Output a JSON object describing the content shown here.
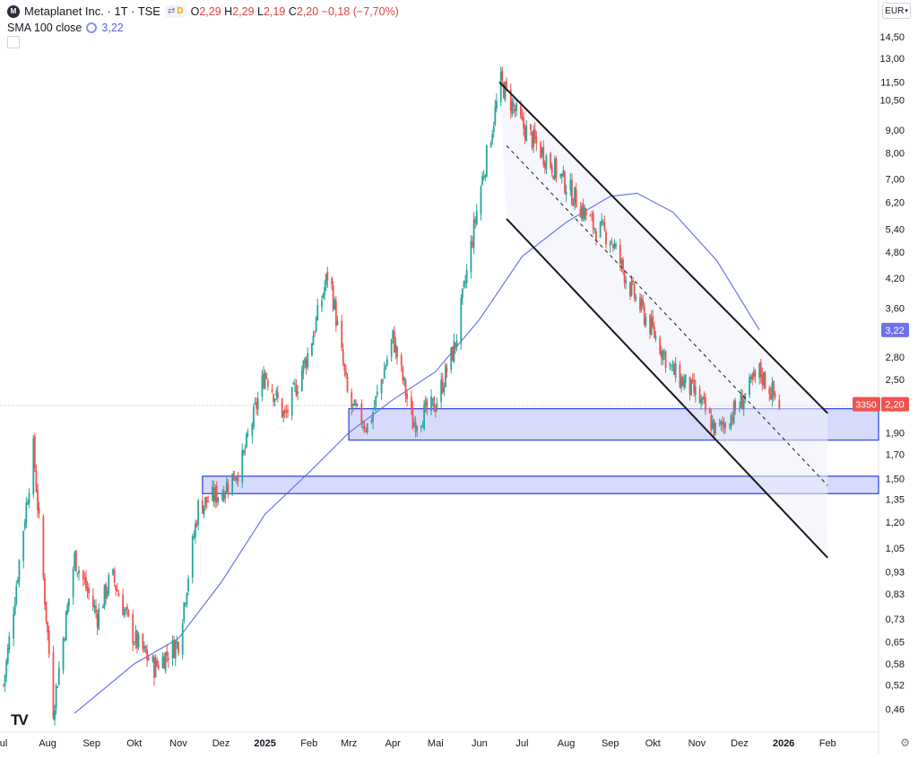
{
  "header": {
    "logo_letter": "M",
    "title": "Metaplanet Inc. · 1T · TSE",
    "pill_icon": "compare-icon",
    "pill_label": "D",
    "ohlc": {
      "o_key": "O",
      "o_val": "2,29",
      "h_key": "H",
      "h_val": "2,29",
      "l_key": "L",
      "l_val": "2,19",
      "c_key": "C",
      "c_val": "2,20",
      "change": "−0,18 (−7,70%)"
    },
    "sma_label": "SMA 100 close",
    "sma_value": "3,22",
    "currency": "EUR",
    "currency_icon": "chevron-down-icon",
    "collapse_icon": "chevron-up-icon",
    "settings_icon": "gear-icon",
    "brand": "TV"
  },
  "colors": {
    "up": "#26a69a",
    "down": "#ef5350",
    "sma": "#5b6cf2",
    "zone_fill": "#c9cdfb",
    "zone_stroke": "#3448e8",
    "channel": "#1a1a1a",
    "price_tag": "#ef5350",
    "sma_tag": "#6f72ec"
  },
  "chart_data": {
    "type": "candlestick",
    "scale": "log",
    "ylim": [
      0.44,
      15.2
    ],
    "y_ticks": [
      "14,50",
      "13,00",
      "11,50",
      "10,50",
      "9,00",
      "8,00",
      "7,00",
      "6,20",
      "5,40",
      "4,80",
      "4,20",
      "3,60",
      "2,80",
      "2,50",
      "2,20",
      "1,90",
      "1,70",
      "1,50",
      "1,35",
      "1,20",
      "1,05",
      "0,93",
      "0,83",
      "0,73",
      "0,65",
      "0,58",
      "0,52",
      "0,46"
    ],
    "y_tick_values": [
      14.5,
      13.0,
      11.5,
      10.5,
      9.0,
      8.0,
      7.0,
      6.2,
      5.4,
      4.8,
      4.2,
      3.6,
      2.8,
      2.5,
      2.2,
      1.9,
      1.7,
      1.5,
      1.35,
      1.2,
      1.05,
      0.93,
      0.83,
      0.73,
      0.65,
      0.58,
      0.52,
      0.46
    ],
    "x_ticks": [
      "ul",
      "Aug",
      "Sep",
      "Okt",
      "Nov",
      "Dez",
      "2025",
      "Feb",
      "Mrz",
      "Apr",
      "Mai",
      "Jun",
      "Jul",
      "Aug",
      "Sep",
      "Okt",
      "Nov",
      "Dez",
      "2026",
      "Feb"
    ],
    "x_tick_bold": [
      "2025",
      "2026"
    ],
    "x_range": [
      "2024-07",
      "2026-02"
    ],
    "price_path": [
      [
        "2024-07-01",
        0.52
      ],
      [
        "2024-07-22",
        1.75
      ],
      [
        "2024-08-05",
        0.46
      ],
      [
        "2024-08-20",
        1.0
      ],
      [
        "2024-09-05",
        0.74
      ],
      [
        "2024-09-15",
        0.92
      ],
      [
        "2024-10-01",
        0.66
      ],
      [
        "2024-10-15",
        0.57
      ],
      [
        "2024-11-01",
        0.65
      ],
      [
        "2024-11-15",
        1.3
      ],
      [
        "2024-12-01",
        1.4
      ],
      [
        "2024-12-15",
        1.6
      ],
      [
        "2025-01-01",
        2.6
      ],
      [
        "2025-01-15",
        2.05
      ],
      [
        "2025-02-01",
        2.9
      ],
      [
        "2025-02-15",
        4.4
      ],
      [
        "2025-03-01",
        2.2
      ],
      [
        "2025-03-15",
        1.95
      ],
      [
        "2025-04-01",
        3.1
      ],
      [
        "2025-04-15",
        2.0
      ],
      [
        "2025-05-01",
        2.2
      ],
      [
        "2025-05-15",
        3.0
      ],
      [
        "2025-06-01",
        6.5
      ],
      [
        "2025-06-16",
        11.5
      ],
      [
        "2025-07-01",
        9.2
      ],
      [
        "2025-08-01",
        6.8
      ],
      [
        "2025-08-20",
        5.5
      ],
      [
        "2025-09-01",
        5.2
      ],
      [
        "2025-09-15",
        4.0
      ],
      [
        "2025-10-01",
        3.2
      ],
      [
        "2025-10-15",
        2.6
      ],
      [
        "2025-11-01",
        2.3
      ],
      [
        "2025-11-15",
        1.9
      ],
      [
        "2025-12-01",
        2.2
      ],
      [
        "2025-12-15",
        2.6
      ],
      [
        "2025-12-29",
        2.2
      ]
    ],
    "sma_path": [
      [
        "2024-08-20",
        0.45
      ],
      [
        "2024-10-01",
        0.58
      ],
      [
        "2024-11-01",
        0.66
      ],
      [
        "2024-12-01",
        0.88
      ],
      [
        "2025-01-01",
        1.25
      ],
      [
        "2025-02-01",
        1.55
      ],
      [
        "2025-03-01",
        1.9
      ],
      [
        "2025-04-01",
        2.25
      ],
      [
        "2025-05-01",
        2.6
      ],
      [
        "2025-06-01",
        3.4
      ],
      [
        "2025-07-01",
        4.7
      ],
      [
        "2025-08-01",
        5.6
      ],
      [
        "2025-09-01",
        6.4
      ],
      [
        "2025-09-20",
        6.5
      ],
      [
        "2025-10-15",
        5.9
      ],
      [
        "2025-11-15",
        4.6
      ],
      [
        "2025-12-15",
        3.22
      ]
    ],
    "last_price": "2,20",
    "last_price_label": "3350",
    "sma_last": "3,22",
    "drawings": {
      "zones": [
        {
          "from": "2025-03-01",
          "to": "2026-02-28",
          "low": 1.83,
          "high": 2.15
        },
        {
          "from": "2024-11-18",
          "to": "2026-02-28",
          "low": 1.39,
          "high": 1.52
        }
      ],
      "channel_upper": [
        [
          "2025-06-15",
          11.5
        ],
        [
          "2026-02-01",
          2.1
        ]
      ],
      "channel_mid": [
        [
          "2025-06-20",
          8.3
        ],
        [
          "2026-02-01",
          1.45
        ]
      ],
      "channel_lower": [
        [
          "2025-06-20",
          5.7
        ],
        [
          "2026-02-01",
          1.0
        ]
      ]
    }
  }
}
